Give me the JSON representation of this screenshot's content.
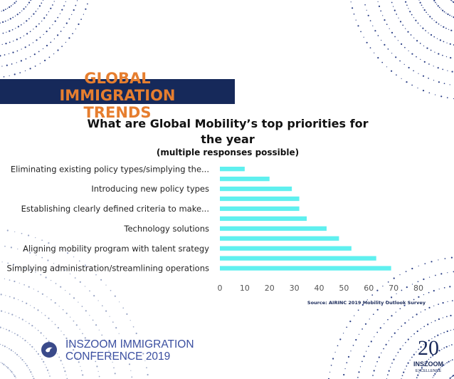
{
  "banner": {
    "title_line1": "GLOBAL IMMIGRATION",
    "title_line2": "TRENDS"
  },
  "chart_title": "What are Global Mobility’s top priorities for the year",
  "chart_subtitle": "(multiple responses possible)",
  "source": "Source: AIRINC 2019 Mobility Outlook Survey",
  "conference": {
    "line1": "INSZOOM IMMIGRATION",
    "line2": "CONFERENCE 2019"
  },
  "logo": {
    "number": "20",
    "brand": "INSZOOM",
    "tagline": "EXCELLENCE"
  },
  "colors": {
    "banner": "#16295a",
    "title_orange": "#e67e2f",
    "bar": "#5ff0ef",
    "conference": "#3b4fa0"
  },
  "chart_data": {
    "type": "bar",
    "orientation": "horizontal",
    "title": "What are Global Mobility’s top priorities for the year",
    "subtitle": "(multiple responses possible)",
    "categories": [
      "Eliminating existing policy types/simplying the...",
      "",
      "Introducing new policy types",
      "",
      "Establishing clearly defined criteria to make...",
      "",
      "Technology solutions",
      "",
      "Aligning mobility program with talent srategy",
      "",
      "Simplying administration/streamlining operations",
      ""
    ],
    "values": [
      10,
      20,
      29,
      32,
      32,
      35,
      43,
      48,
      53,
      63,
      69,
      0
    ],
    "bar_values": [
      10,
      20,
      29,
      32,
      32,
      35,
      43,
      48,
      53,
      63,
      69
    ],
    "xlim": [
      0,
      80
    ],
    "xticks": [
      0,
      10,
      20,
      30,
      40,
      50,
      60,
      70,
      80
    ],
    "grid": false,
    "legend": "none"
  }
}
